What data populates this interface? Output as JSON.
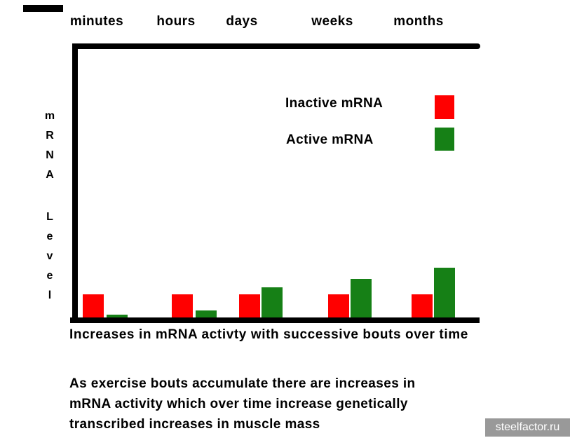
{
  "chart_data": {
    "type": "bar",
    "title": "Increases in mRNA activty with successive bouts over time",
    "categories": [
      "minutes",
      "hours",
      "days",
      "weeks",
      "months"
    ],
    "series": [
      {
        "name": "Inactive mRNA",
        "color": "#ff0000",
        "values": [
          1.0,
          1.0,
          1.0,
          1.0,
          1.0
        ]
      },
      {
        "name": "Active mRNA",
        "color": "#168016",
        "values": [
          0.12,
          0.3,
          1.3,
          1.67,
          2.15
        ]
      }
    ],
    "xlabel": "",
    "ylabel": "mRNA Level",
    "ylabel_lines": [
      "mRNA",
      "Level"
    ],
    "ylim": [
      0,
      2.5
    ],
    "grid": false,
    "legend_position": "inside-top-right",
    "axis_color": "#000000",
    "y_axis_numeric_labels": false
  },
  "description": {
    "lines": [
      "As exercise bouts accumulate there are increases in",
      "mRNA activity which over time increase genetically",
      "transcribed increases in muscle mass"
    ]
  },
  "watermark": {
    "text": "steelfactor.ru",
    "bg_color": "#999999",
    "text_color": "#ffffff"
  }
}
